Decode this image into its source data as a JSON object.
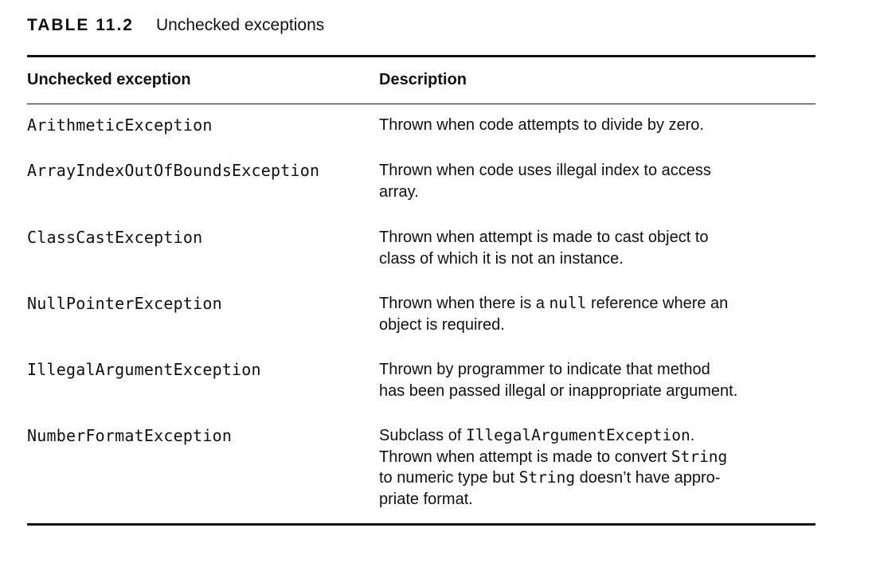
{
  "table": {
    "label": "TABLE 11.2",
    "title": "Unchecked exceptions",
    "headers": {
      "exception": "Unchecked exception",
      "description": "Description"
    },
    "rows": [
      {
        "exception": "ArithmeticException",
        "description_lines": [
          "Thrown when code attempts to divide by zero."
        ]
      },
      {
        "exception": "ArrayIndexOutOfBoundsException",
        "description_lines": [
          "Thrown when code uses illegal index to access",
          "array."
        ]
      },
      {
        "exception": "ClassCastException",
        "description_lines": [
          "Thrown when attempt is made to cast object to",
          "class of which it is not an instance."
        ]
      },
      {
        "exception": "NullPointerException",
        "description_lines": [
          {
            "pre": "Thrown when there is a ",
            "code": "null",
            "post": " reference where an"
          },
          "object is required."
        ]
      },
      {
        "exception": "IllegalArgumentException",
        "description_lines": [
          "Thrown by programmer to indicate that method",
          "has been passed illegal or inappropriate argument."
        ]
      },
      {
        "exception": "NumberFormatException",
        "description_lines": [
          {
            "pre": "Subclass of ",
            "code": "IllegalArgumentException",
            "post": "."
          },
          {
            "pre": "Thrown when attempt is made to convert ",
            "code": "String",
            "post": ""
          },
          {
            "pre": "to numeric type but ",
            "code": "String",
            "post": " doesn’t have appro-"
          },
          "priate format."
        ]
      }
    ]
  }
}
